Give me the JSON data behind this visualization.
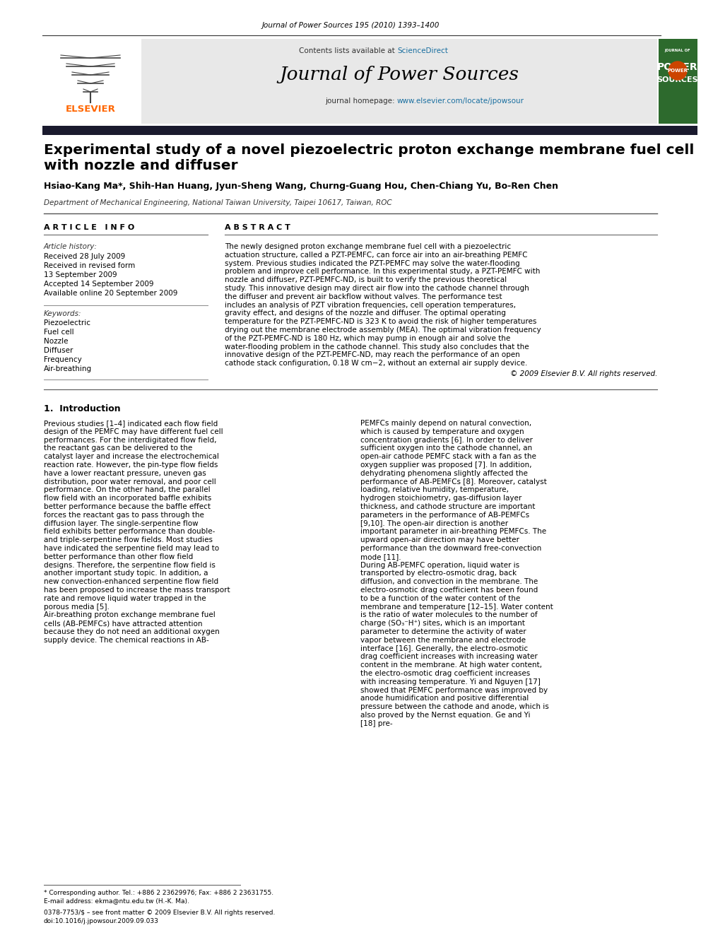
{
  "page_bg": "#ffffff",
  "header_journal_ref": "Journal of Power Sources 195 (2010) 1393–1400",
  "header_ref_color": "#000000",
  "header_ref_fontsize": 7.5,
  "contents_text": "Contents lists available at ",
  "sciencedirect_text": "ScienceDirect",
  "sciencedirect_color": "#1a6fa0",
  "journal_title": "Journal of Power Sources",
  "journal_homepage_prefix": "journal homepage: ",
  "journal_homepage_url": "www.elsevier.com/locate/jpowsour",
  "journal_homepage_color": "#1a6fa0",
  "header_bg": "#e8e8e8",
  "elsevier_color": "#ff6600",
  "dark_bar_color": "#1a1a2e",
  "paper_title_line1": "Experimental study of a novel piezoelectric proton exchange membrane fuel cell",
  "paper_title_line2": "with nozzle and diffuser",
  "authors": "Hsiao-Kang Ma*, Shih-Han Huang, Jyun-Sheng Wang, Churng-Guang Hou, Chen-Chiang Yu, Bo-Ren Chen",
  "affiliation": "Department of Mechanical Engineering, National Taiwan University, Taipei 10617, Taiwan, ROC",
  "article_info_title": "A R T I C L E   I N F O",
  "abstract_title": "A B S T R A C T",
  "article_history_label": "Article history:",
  "received_1": "Received 28 July 2009",
  "received_revised": "Received in revised form",
  "received_revised_date": "13 September 2009",
  "accepted": "Accepted 14 September 2009",
  "available": "Available online 20 September 2009",
  "keywords_label": "Keywords:",
  "keywords": [
    "Piezoelectric",
    "Fuel cell",
    "Nozzle",
    "Diffuser",
    "Frequency",
    "Air-breathing"
  ],
  "abstract_text": "The newly designed proton exchange membrane fuel cell with a piezoelectric actuation structure, called a PZT-PEMFC, can force air into an air-breathing PEMFC system. Previous studies indicated the PZT-PEMFC may solve the water-flooding problem and improve cell performance. In this experimental study, a PZT-PEMFC with nozzle and diffuser, PZT-PEMFC-ND, is built to verify the previous theoretical study. This innovative design may direct air flow into the cathode channel through the diffuser and prevent air backflow without valves. The performance test includes an analysis of PZT vibration frequencies, cell operation temperatures, gravity effect, and designs of the nozzle and diffuser. The optimal operating temperature for the PZT-PEMFC-ND is 323 K to avoid the risk of higher temperatures drying out the membrane electrode assembly (MEA). The optimal vibration frequency of the PZT-PEMFC-ND is 180 Hz, which may pump in enough air and solve the water-flooding problem in the cathode channel. This study also concludes that the innovative design of the PZT-PEMFC-ND, may reach the performance of an open cathode stack configuration, 0.18 W cm−2, without an external air supply device.",
  "copyright": "© 2009 Elsevier B.V. All rights reserved.",
  "issn_line": "0378-7753/$ – see front matter © 2009 Elsevier B.V. All rights reserved.",
  "doi_line": "doi:10.1016/j.jpowsour.2009.09.033",
  "section1_title": "1.  Introduction",
  "intro_col1_text": "    Previous studies [1–4] indicated each flow field design of the PEMFC may have different fuel cell performances. For the interdigitated flow field, the reactant gas can be delivered to the catalyst layer and increase the electrochemical reaction rate. However, the pin-type flow fields have a lower reactant pressure, uneven gas distribution, poor water removal, and poor cell performance. On the other hand, the parallel flow field with an incorporated baffle exhibits better performance because the baffle effect forces the reactant gas to pass through the diffusion layer. The single-serpentine flow field exhibits better performance than double- and triple-serpentine flow fields. Most studies have indicated the serpentine field may lead to better performance than other flow field designs. Therefore, the serpentine flow field is another important study topic. In addition, a new convection-enhanced serpentine flow field has been proposed to increase the mass transport rate and remove liquid water trapped in the porous media [5].\n    Air-breathing proton exchange membrane fuel cells (AB-PEMFCs) have attracted attention because they do not need an additional oxygen supply device. The chemical reactions in AB-",
  "intro_col2_text": "PEMFCs mainly depend on natural convection, which is caused by temperature and oxygen concentration gradients [6]. In order to deliver sufficient oxygen into the cathode channel, an open-air cathode PEMFC stack with a fan as the oxygen supplier was proposed [7]. In addition, dehydrating phenomena slightly affected the performance of AB-PEMFCs [8]. Moreover, catalyst loading, relative humidity, temperature, hydrogen stoichiometry, gas-diffusion layer thickness, and cathode structure are important parameters in the performance of AB-PEMFCs [9,10]. The open-air direction is another important parameter in air-breathing PEMFCs. The upward open-air direction may have better performance than the downward free-convection mode [11].\n    During AB-PEMFC operation, liquid water is transported by electro-osmotic drag, back diffusion, and convection in the membrane. The electro-osmotic drag coefficient has been found to be a function of the water content of the membrane and temperature [12–15]. Water content is the ratio of water molecules to the number of charge (SO₃⁻H⁺) sites, which is an important parameter to determine the activity of water vapor between the membrane and electrode interface [16]. Generally, the electro-osmotic drag coefficient increases with increasing water content in the membrane. At high water content, the electro-osmotic drag coefficient increases with increasing temperature. Yi and Nguyen [17] showed that PEMFC performance was improved by anode humidification and positive differential pressure between the cathode and anode, which is also proved by the Nernst equation. Ge and Yi [18] pre-",
  "footnote_star": "* Corresponding author. Tel.: +886 2 23629976; Fax: +886 2 23631755.",
  "footnote_email": "E-mail address: ekma@ntu.edu.tw (H.-K. Ma)."
}
